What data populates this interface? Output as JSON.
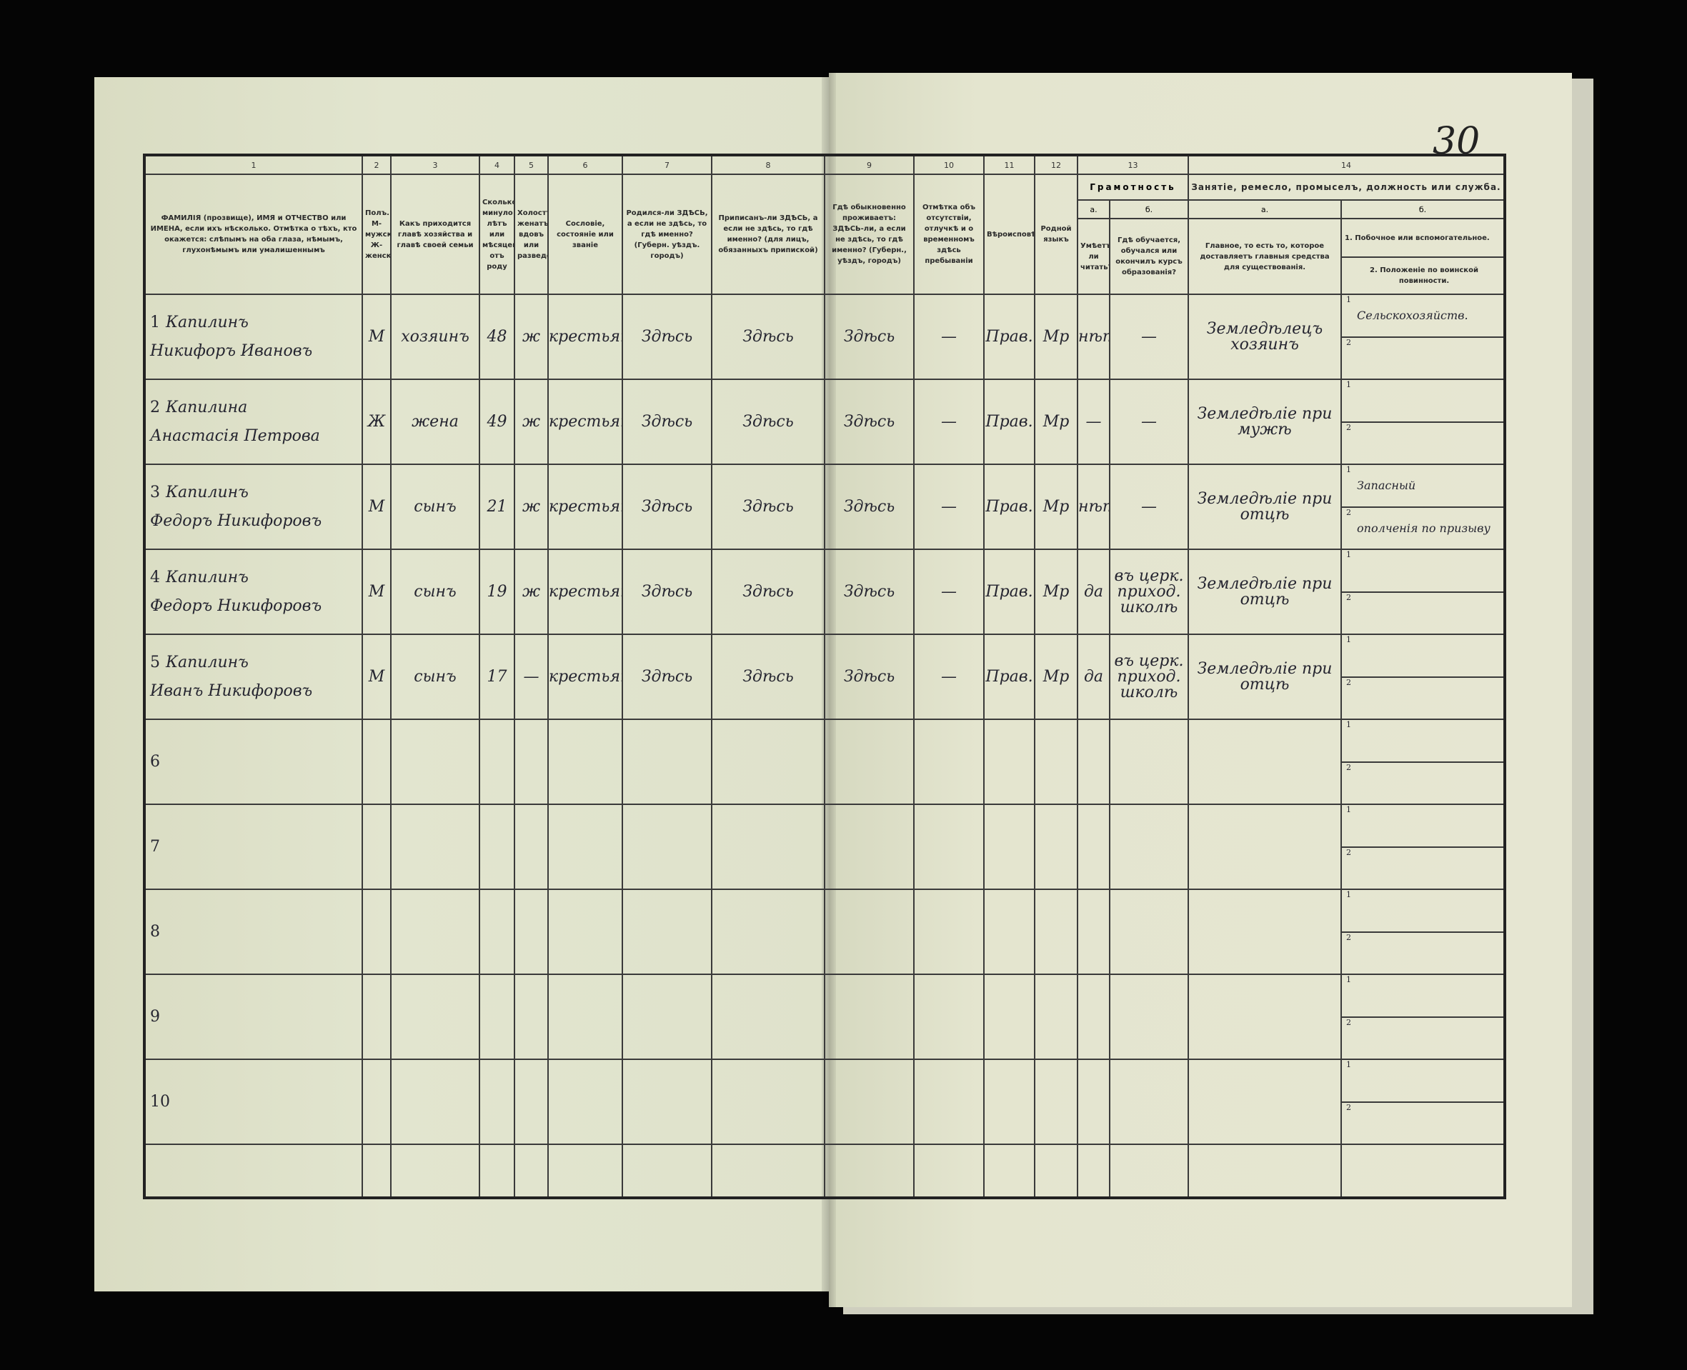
{
  "page_number": "30",
  "header": {
    "col_numbers": [
      "1",
      "2",
      "3",
      "4",
      "5",
      "6",
      "7",
      "8",
      "9",
      "10",
      "11",
      "12",
      "13",
      "14"
    ],
    "c1": "ФАМИЛІЯ (прозвище), ИМЯ и ОТЧЕСТВО или ИМЕНА, если ихъ нѣсколько. Отмѣтка о тѣхъ, кто окажется: слѣпымъ на оба глаза, нѣмымъ, глухонѣмымъ или умалишеннымъ",
    "c2": "Полъ. М-мужской, Ж-женскій",
    "c3": "Какъ приходится главѣ хозяйства и главѣ своей семьи",
    "c4": "Сколько минуло лѣтъ или мѣсяцевъ отъ роду",
    "c5": "Холостъ, женатъ, вдовъ или разведенъ",
    "c6": "Сословіе, состояніе или званіе",
    "c7": "Родился-ли ЗДѢСЬ, а если не здѣсь, то гдѣ именно? (Губерн. уѣздъ. городъ)",
    "c8": "Приписанъ-ли ЗДѢСЬ, а если не здѣсь, то гдѣ именно? (для лицъ, обязанныхъ припиской)",
    "c9": "Гдѣ обыкновенно проживаетъ: ЗДѢСЬ-ли, а если не здѣсь, то гдѣ именно? (Губерн., уѣздъ, городъ)",
    "c10": "Отмѣтка объ отсутствіи, отлучкѣ и о временномъ здѣсь пребываніи",
    "c11": "Вѣроисповѣданіе",
    "c12": "Родной языкъ",
    "c13_title": "Грамотность",
    "c13a_letter": "а.",
    "c13b_letter": "б.",
    "c13a": "Умѣетъ-ли читать?",
    "c13b": "Гдѣ обучается, обучался или окончилъ курсъ образованія?",
    "c14_title": "Занятіе, ремесло, промыселъ, должность или служба.",
    "c14a_letter": "а.",
    "c14b_letter": "б.",
    "c14a": "Главное, то есть то, которое доставляетъ главныя средства для существованія.",
    "c14b_1": "1. Побочное или вспомогательное.",
    "c14b_2": "2. Положеніе по воинской повинности."
  },
  "rows": [
    {
      "num": "1",
      "surname": "Капилинъ",
      "name": "Никифоръ Ивановъ",
      "sex": "М",
      "relation": "хозяинъ",
      "age": "48",
      "marital": "ж",
      "estate": "крестьянинъ",
      "born": "Здѣсь",
      "registered": "Здѣсь",
      "resides": "Здѣсь",
      "absence": "—",
      "religion": "Прав.",
      "language": "Мр",
      "reads": "нѣтъ",
      "school": "—",
      "occ_main": "Земледѣлецъ хозяинъ",
      "occ_side": "Сельскохозяйств.",
      "military": ""
    },
    {
      "num": "2",
      "surname": "Капилина",
      "name": "Анастасія Петрова",
      "sex": "Ж",
      "relation": "жена",
      "age": "49",
      "marital": "ж",
      "estate": "крестьянка",
      "born": "Здѣсь",
      "registered": "Здѣсь",
      "resides": "Здѣсь",
      "absence": "—",
      "religion": "Прав.",
      "language": "Мр",
      "reads": "—",
      "school": "—",
      "occ_main": "Земледѣліе при мужѣ",
      "occ_side": "",
      "military": ""
    },
    {
      "num": "3",
      "surname": "Капилинъ",
      "name": "Федоръ Никифоровъ",
      "sex": "М",
      "relation": "сынъ",
      "age": "21",
      "marital": "ж",
      "estate": "крестьянинъ",
      "born": "Здѣсь",
      "registered": "Здѣсь",
      "resides": "Здѣсь",
      "absence": "—",
      "religion": "Прав.",
      "language": "Мр",
      "reads": "нѣтъ",
      "school": "—",
      "occ_main": "Земледѣліе при отцѣ",
      "occ_side": "Запасный",
      "military": "ополченія по призыву"
    },
    {
      "num": "4",
      "surname": "Капилинъ",
      "name": "Федоръ Никифоровъ",
      "sex": "М",
      "relation": "сынъ",
      "age": "19",
      "marital": "ж",
      "estate": "крестьянинъ",
      "born": "Здѣсь",
      "registered": "Здѣсь",
      "resides": "Здѣсь",
      "absence": "—",
      "religion": "Прав.",
      "language": "Мр",
      "reads": "да",
      "school": "въ церк. приход. школѣ",
      "occ_main": "Земледѣліе при отцѣ",
      "occ_side": "",
      "military": ""
    },
    {
      "num": "5",
      "surname": "Капилинъ",
      "name": "Иванъ Никифоровъ",
      "sex": "М",
      "relation": "сынъ",
      "age": "17",
      "marital": "—",
      "estate": "крестьянинъ",
      "born": "Здѣсь",
      "registered": "Здѣсь",
      "resides": "Здѣсь",
      "absence": "—",
      "religion": "Прав.",
      "language": "Мр",
      "reads": "да",
      "school": "въ церк. приход. школѣ",
      "occ_main": "Земледѣліе при отцѣ",
      "occ_side": "",
      "military": ""
    },
    {
      "num": "6"
    },
    {
      "num": "7"
    },
    {
      "num": "8"
    },
    {
      "num": "9"
    },
    {
      "num": "10"
    }
  ],
  "sub_marks": [
    "1",
    "2"
  ]
}
